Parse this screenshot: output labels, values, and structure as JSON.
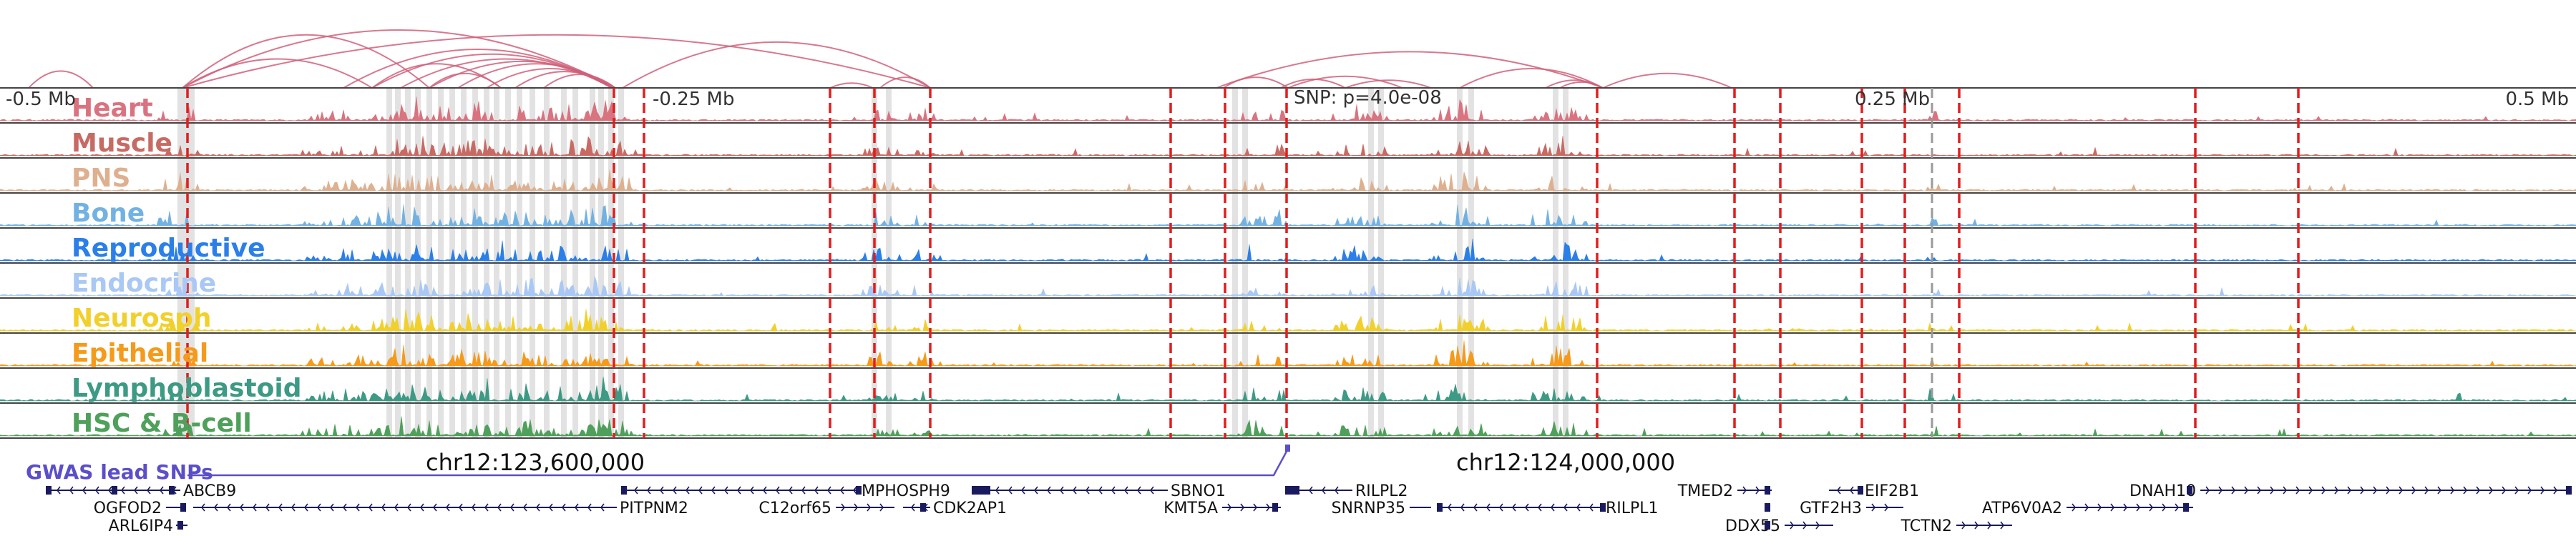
{
  "scale": {
    "left": "-0.5 Mb",
    "mid_left": "-0.25 Mb",
    "snp": "SNP: p=4.0e-08",
    "mid_right": "0.25 Mb",
    "right": "0.5 Mb"
  },
  "tracks": [
    {
      "label": "Heart",
      "color": "#d9737f"
    },
    {
      "label": "Muscle",
      "color": "#c86a64"
    },
    {
      "label": "PNS",
      "color": "#deb08f"
    },
    {
      "label": "Bone",
      "color": "#72b2e3"
    },
    {
      "label": "Reproductive",
      "color": "#2b7fe8"
    },
    {
      "label": "Endocrine",
      "color": "#a9c8f5"
    },
    {
      "label": "Neurosph",
      "color": "#f2d02b"
    },
    {
      "label": "Epithelial",
      "color": "#f59a1a"
    },
    {
      "label": "Lymphoblastoid",
      "color": "#3d9a84"
    },
    {
      "label": "HSC & B-cell",
      "color": "#4ea05a"
    }
  ],
  "coordinates": {
    "left": "chr12:123,600,000",
    "right": "chr12:124,000,000"
  },
  "gwas_label": "GWAS lead SNPs",
  "genes": [
    {
      "name": "ABCB9",
      "strand": "-"
    },
    {
      "name": "OGFOD2",
      "strand": "+"
    },
    {
      "name": "ARL6IP4",
      "strand": "+"
    },
    {
      "name": "PITPNM2",
      "strand": "-"
    },
    {
      "name": "MPHOSPH9",
      "strand": "-"
    },
    {
      "name": "C12orf65",
      "strand": "+"
    },
    {
      "name": "CDK2AP1",
      "strand": "-"
    },
    {
      "name": "SBNO1",
      "strand": "-"
    },
    {
      "name": "KMT5A",
      "strand": "+"
    },
    {
      "name": "RILPL2",
      "strand": "-"
    },
    {
      "name": "SNRNP35",
      "strand": "-"
    },
    {
      "name": "RILPL1",
      "strand": "-"
    },
    {
      "name": "TMED2",
      "strand": "+"
    },
    {
      "name": "DDX55",
      "strand": "+"
    },
    {
      "name": "EIF2B1",
      "strand": "-"
    },
    {
      "name": "GTF2H3",
      "strand": "+"
    },
    {
      "name": "TCTN2",
      "strand": "+"
    },
    {
      "name": "ATP6V0A2",
      "strand": "+"
    },
    {
      "name": "DNAH10",
      "strand": "+"
    }
  ],
  "colors": {
    "loop": "#d0607a",
    "snp_line": "#e01e1e",
    "gwas": "#5b4fc9",
    "gene": "#1a1a5e",
    "highlight": "#d8d8d8"
  }
}
